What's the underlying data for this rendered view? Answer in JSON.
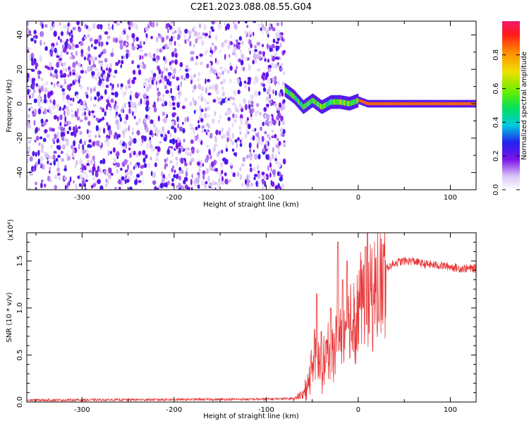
{
  "figure_title": "C2E1.2023.088.08.55.G04",
  "chart_data": [
    {
      "type": "heatmap",
      "title": "",
      "xlabel": "Height of straight line (km)",
      "ylabel": "Frequency (Hz)",
      "xlim": [
        -360,
        128
      ],
      "ylim": [
        -50,
        48
      ],
      "x_ticks": [
        "-300",
        "-200",
        "-100",
        "0",
        "100"
      ],
      "y_ticks": [
        "-40",
        "-20",
        "0",
        "20",
        "40"
      ],
      "colorbar": {
        "label": "Normalized spectral amplitude",
        "range": [
          0,
          1
        ],
        "ticks": [
          "0.0",
          "0.2",
          "0.4",
          "0.6",
          "0.8"
        ]
      },
      "description_points": {
        "noise_region_x_end": -80,
        "signal_ridge": {
          "x": [
            -80,
            -70,
            -60,
            -50,
            -40,
            -30,
            -20,
            -10,
            0,
            10,
            20,
            50,
            100,
            128
          ],
          "y": [
            8,
            4,
            -2,
            2,
            -2,
            1,
            1,
            0,
            2,
            0,
            0,
            0,
            0,
            0
          ]
        },
        "signal_amplitude_after_0": 0.85
      }
    },
    {
      "type": "line",
      "title": "",
      "xlabel": "Height of straight line (km)",
      "ylabel": "SNR (10 * v/v)",
      "y_multiplier": "(x10⁴)",
      "xlim": [
        -360,
        128
      ],
      "ylim": [
        0,
        1.8
      ],
      "x_ticks": [
        "-300",
        "-200",
        "-100",
        "0",
        "100"
      ],
      "y_ticks": [
        "0.0",
        "0.5",
        "1.0",
        "1.5"
      ],
      "series_color": "#e83535",
      "envelope": {
        "x": [
          -360,
          -100,
          -70,
          -60,
          -55,
          -50,
          -45,
          -40,
          -35,
          -30,
          -25,
          -20,
          -15,
          -10,
          -5,
          0,
          5,
          10,
          15,
          20,
          25,
          30,
          40,
          50,
          60,
          70,
          80,
          90,
          100,
          110,
          120,
          128
        ],
        "y": [
          0.02,
          0.03,
          0.04,
          0.08,
          0.2,
          0.45,
          0.6,
          0.4,
          0.55,
          0.6,
          0.7,
          0.8,
          0.85,
          0.9,
          1.0,
          1.15,
          1.2,
          1.1,
          1.25,
          1.3,
          1.38,
          1.42,
          1.48,
          1.5,
          1.5,
          1.47,
          1.46,
          1.45,
          1.44,
          1.42,
          1.42,
          1.42
        ]
      },
      "spikes": {
        "x": [
          -45,
          -40,
          -30,
          -22,
          -17,
          -12,
          8,
          10
        ],
        "y": [
          1.15,
          0.75,
          1.0,
          1.7,
          1.3,
          1.5,
          1.65,
          1.8
        ]
      }
    }
  ]
}
